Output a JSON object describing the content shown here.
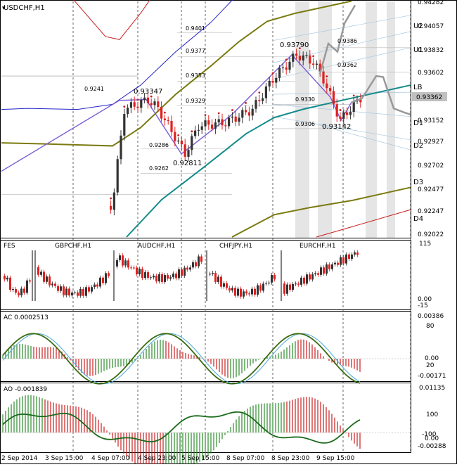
{
  "window": {
    "symbol_title": "USDCHF,H1"
  },
  "colors": {
    "up": "#333333",
    "down": "#e02020",
    "blue": "#2323c8",
    "olive": "#7a7a10",
    "teal": "#138a8a",
    "purple": "#7b5cd6",
    "red": "#c81e1e",
    "gray": "#999999",
    "price_box": "#c0c0c0"
  },
  "main_panel": {
    "price_scale": [
      "0.94282",
      "0.94057",
      "0.93832",
      "0.93602",
      "0.93362",
      "0.93152",
      "0.92927",
      "0.92702",
      "0.92477",
      "0.92247",
      "0.92022"
    ],
    "current_price": "0.93362",
    "level_labels": [
      "U2",
      "U1",
      "LB",
      "D1",
      "D2",
      "D3",
      "D4"
    ],
    "grid_values": [
      "0.9401",
      "0.9377",
      "0.9353",
      "0.9329",
      "0.9241",
      "0.9286",
      "0.9262",
      "0.9330",
      "0.9306",
      "0.9386",
      "0.9362"
    ],
    "zigzag_labels": [
      "0.93347",
      "0.92811",
      "0.93790",
      "0.93142"
    ]
  },
  "panel2": {
    "label": "FES",
    "instruments": [
      "GBPCHF,H1",
      "AUDCHF,H1",
      "CHFJPY,H1",
      "EURCHF,H1"
    ],
    "scale": [
      "115",
      "0.00",
      "-15"
    ]
  },
  "panel3": {
    "label": "AC 0.0002513",
    "scale": [
      "0.00386",
      "80",
      "0.00",
      "20",
      "-0.00171"
    ]
  },
  "panel4": {
    "label": "AO -0.001839",
    "scale": [
      "0.01135",
      "100",
      "-100",
      "0.00",
      "-0.00288"
    ]
  },
  "time_axis": [
    "2 Sep 2014",
    "3 Sep 15:00",
    "4 Sep 07:00",
    "4 Sep 23:00",
    "5 Sep 15:00",
    "8 Sep 07:00",
    "8 Sep 23:00",
    "9 Sep 15:00"
  ],
  "chart_data": {
    "type": "candlestick",
    "title": "USDCHF,H1",
    "ylim": [
      0.9199,
      0.9431
    ],
    "x_tick_labels": [
      "2 Sep 2014",
      "3 Sep 15:00",
      "4 Sep 07:00",
      "4 Sep 23:00",
      "5 Sep 15:00",
      "8 Sep 07:00",
      "8 Sep 23:00",
      "9 Sep 15:00"
    ],
    "zigzag": [
      {
        "bar": 43,
        "price": 0.93347
      },
      {
        "bar": 54,
        "price": 0.92811
      },
      {
        "bar": 87,
        "price": 0.9379
      },
      {
        "bar": 100,
        "price": 0.93142
      },
      {
        "bar": 106,
        "price": 0.93362
      }
    ],
    "current_price": 0.93362,
    "indicators": [
      "AC 0.0002513",
      "AO -0.001839"
    ]
  }
}
